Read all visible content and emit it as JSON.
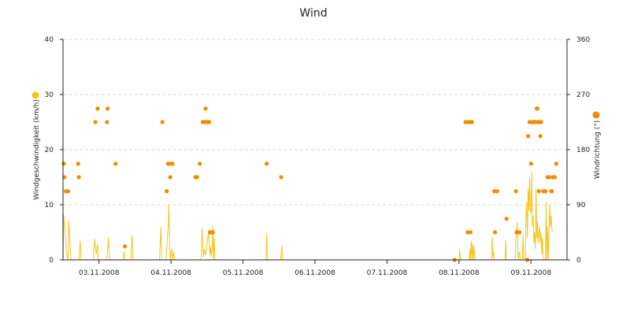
{
  "chart_data": {
    "type": "line",
    "title": "Wind",
    "x_tick_labels": [
      "03.11.2008",
      "04.11.2008",
      "05.11.2008",
      "06.11.2008",
      "07.11.2008",
      "08.11.2008",
      "09.11.2008"
    ],
    "x_range_days": [
      2.5,
      9.5
    ],
    "y_left": {
      "label": "Windgeschwindigkeit (km/h)",
      "range": [
        0,
        40
      ],
      "ticks": [
        0,
        10,
        20,
        30,
        40
      ]
    },
    "y_right": {
      "label": "Windrichtung (°)",
      "range": [
        0,
        360
      ],
      "ticks": [
        0,
        90,
        180,
        270,
        360
      ]
    },
    "grid": true,
    "colors": {
      "speed": "#f5c518",
      "direction": "#f08c00",
      "speed_marker": "#f5c518",
      "direction_marker": "#f08c00"
    },
    "series": [
      {
        "id": "speed",
        "type": "line",
        "axis": "left",
        "points": [
          [
            2.5,
            0
          ],
          [
            2.51,
            8.2
          ],
          [
            2.53,
            5
          ],
          [
            2.55,
            1
          ],
          [
            2.57,
            0
          ],
          [
            2.58,
            7.2
          ],
          [
            2.6,
            2
          ],
          [
            2.61,
            0
          ],
          [
            2.72,
            0
          ],
          [
            2.74,
            3.5
          ],
          [
            2.75,
            0
          ],
          [
            2.92,
            0
          ],
          [
            2.94,
            3.8
          ],
          [
            2.96,
            1
          ],
          [
            2.98,
            2.8
          ],
          [
            2.99,
            0
          ],
          [
            3.11,
            0
          ],
          [
            3.13,
            4
          ],
          [
            3.15,
            0
          ],
          [
            3.33,
            0
          ],
          [
            3.35,
            1.5
          ],
          [
            3.36,
            0
          ],
          [
            3.44,
            0
          ],
          [
            3.46,
            4.5
          ],
          [
            3.47,
            0
          ],
          [
            3.84,
            0
          ],
          [
            3.86,
            6
          ],
          [
            3.87,
            0
          ],
          [
            3.93,
            0
          ],
          [
            3.96,
            6
          ],
          [
            3.97,
            10
          ],
          [
            3.98,
            3
          ],
          [
            3.99,
            0
          ],
          [
            4.01,
            2
          ],
          [
            4.02,
            0
          ],
          [
            4.04,
            1.5
          ],
          [
            4.05,
            0
          ],
          [
            4.42,
            0
          ],
          [
            4.43,
            5.8
          ],
          [
            4.45,
            0.5
          ],
          [
            4.46,
            2
          ],
          [
            4.48,
            0.8
          ],
          [
            4.5,
            3
          ],
          [
            4.52,
            5
          ],
          [
            4.53,
            3.5
          ],
          [
            4.54,
            1
          ],
          [
            4.55,
            2.5
          ],
          [
            4.56,
            0.5
          ],
          [
            4.57,
            2
          ],
          [
            4.58,
            6.2
          ],
          [
            4.59,
            0
          ],
          [
            4.6,
            4
          ],
          [
            4.61,
            0
          ],
          [
            5.32,
            0
          ],
          [
            5.33,
            4.6
          ],
          [
            5.34,
            0
          ],
          [
            5.52,
            0
          ],
          [
            5.54,
            2.5
          ],
          [
            5.55,
            0
          ],
          [
            8.0,
            0
          ],
          [
            8.01,
            1.8
          ],
          [
            8.02,
            0
          ],
          [
            8.14,
            0
          ],
          [
            8.15,
            2
          ],
          [
            8.16,
            0
          ],
          [
            8.17,
            3.5
          ],
          [
            8.18,
            0
          ],
          [
            8.19,
            3
          ],
          [
            8.2,
            0
          ],
          [
            8.21,
            2.5
          ],
          [
            8.22,
            0
          ],
          [
            8.45,
            0
          ],
          [
            8.46,
            4.2
          ],
          [
            8.47,
            0.5
          ],
          [
            8.48,
            1.5
          ],
          [
            8.49,
            0
          ],
          [
            8.64,
            0
          ],
          [
            8.65,
            3.5
          ],
          [
            8.66,
            0
          ],
          [
            8.78,
            0
          ],
          [
            8.79,
            4
          ],
          [
            8.8,
            5.2
          ],
          [
            8.81,
            6.8
          ],
          [
            8.82,
            0
          ],
          [
            8.84,
            1.5
          ],
          [
            8.85,
            0
          ],
          [
            8.88,
            0
          ],
          [
            8.89,
            4.5
          ],
          [
            8.9,
            0
          ],
          [
            8.92,
            0
          ],
          [
            8.93,
            8
          ],
          [
            8.94,
            10.5
          ],
          [
            8.95,
            4
          ],
          [
            8.96,
            13
          ],
          [
            8.97,
            9
          ],
          [
            8.98,
            15
          ],
          [
            8.99,
            9
          ],
          [
            9.0,
            8.5
          ],
          [
            9.01,
            16
          ],
          [
            9.02,
            6
          ],
          [
            9.03,
            8
          ],
          [
            9.04,
            3
          ],
          [
            9.05,
            5
          ],
          [
            9.06,
            2
          ],
          [
            9.07,
            13
          ],
          [
            9.08,
            4
          ],
          [
            9.09,
            7
          ],
          [
            9.1,
            3
          ],
          [
            9.11,
            5
          ],
          [
            9.12,
            6
          ],
          [
            9.13,
            3
          ],
          [
            9.14,
            5
          ],
          [
            9.15,
            1
          ],
          [
            9.16,
            4
          ],
          [
            9.17,
            0
          ],
          [
            9.2,
            0
          ],
          [
            9.21,
            10.5
          ],
          [
            9.22,
            0
          ],
          [
            9.23,
            6
          ],
          [
            9.24,
            0
          ],
          [
            9.26,
            10
          ],
          [
            9.27,
            6
          ],
          [
            9.28,
            8
          ],
          [
            9.29,
            5.5
          ],
          [
            9.3,
            5.2
          ]
        ]
      },
      {
        "id": "direction",
        "type": "scatter",
        "axis": "right",
        "points": [
          [
            2.51,
            157
          ],
          [
            2.52,
            135
          ],
          [
            2.54,
            112
          ],
          [
            2.57,
            112
          ],
          [
            2.71,
            157
          ],
          [
            2.72,
            135
          ],
          [
            2.95,
            225
          ],
          [
            2.98,
            247
          ],
          [
            3.12,
            247
          ],
          [
            3.11,
            225
          ],
          [
            3.23,
            157
          ],
          [
            3.36,
            22
          ],
          [
            3.88,
            225
          ],
          [
            3.94,
            112
          ],
          [
            3.96,
            157
          ],
          [
            3.98,
            157
          ],
          [
            3.99,
            135
          ],
          [
            4.02,
            157
          ],
          [
            4.02,
            157
          ],
          [
            4.34,
            135
          ],
          [
            4.36,
            135
          ],
          [
            4.4,
            157
          ],
          [
            4.44,
            225
          ],
          [
            4.46,
            225
          ],
          [
            4.48,
            247
          ],
          [
            4.49,
            225
          ],
          [
            4.51,
            225
          ],
          [
            4.53,
            225
          ],
          [
            4.54,
            45
          ],
          [
            4.56,
            45
          ],
          [
            4.58,
            45
          ],
          [
            5.33,
            157
          ],
          [
            5.53,
            135
          ],
          [
            7.94,
            0
          ],
          [
            8.09,
            225
          ],
          [
            8.12,
            45
          ],
          [
            8.13,
            225
          ],
          [
            8.15,
            225
          ],
          [
            8.16,
            45
          ],
          [
            8.18,
            225
          ],
          [
            8.49,
            112
          ],
          [
            8.5,
            45
          ],
          [
            8.53,
            112
          ],
          [
            8.66,
            67
          ],
          [
            8.79,
            112
          ],
          [
            8.8,
            45
          ],
          [
            8.82,
            45
          ],
          [
            8.84,
            45
          ],
          [
            8.95,
            0
          ],
          [
            8.96,
            202
          ],
          [
            8.98,
            225
          ],
          [
            9.0,
            157
          ],
          [
            9.01,
            225
          ],
          [
            9.02,
            225
          ],
          [
            9.04,
            225
          ],
          [
            9.05,
            225
          ],
          [
            9.06,
            225
          ],
          [
            9.08,
            247
          ],
          [
            9.09,
            247
          ],
          [
            9.1,
            225
          ],
          [
            9.11,
            112
          ],
          [
            9.12,
            225
          ],
          [
            9.13,
            202
          ],
          [
            9.14,
            225
          ],
          [
            9.17,
            112
          ],
          [
            9.2,
            112
          ],
          [
            9.23,
            135
          ],
          [
            9.25,
            135
          ],
          [
            9.28,
            112
          ],
          [
            9.29,
            112
          ],
          [
            9.3,
            135
          ],
          [
            9.32,
            135
          ],
          [
            9.35,
            157
          ],
          [
            9.33,
            135
          ]
        ]
      }
    ]
  }
}
